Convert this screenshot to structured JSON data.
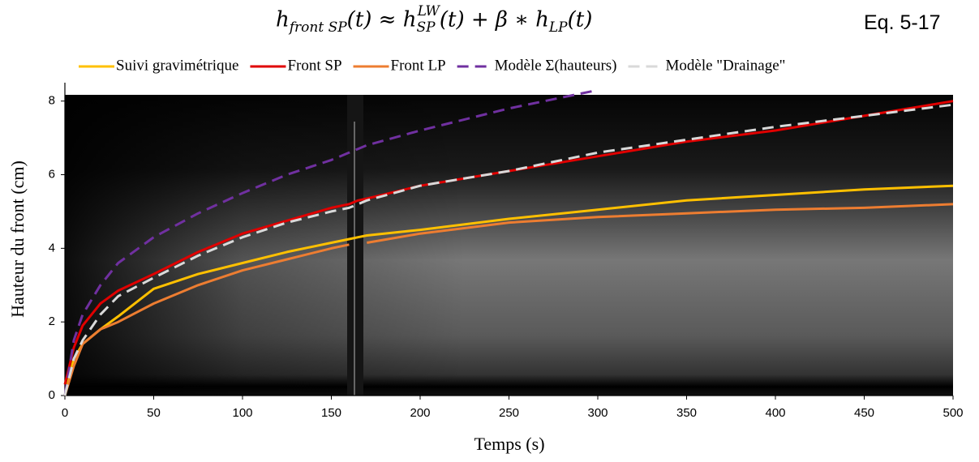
{
  "equation": {
    "base1": "h",
    "sub1": "front SP",
    "mid1": "(t) ≈ h",
    "sub2": "SP",
    "sup2": "LW",
    "mid2": "(t) + β ∗ h",
    "sub3": "LP",
    "end": "(t)"
  },
  "equation_label": "Eq. 5-17",
  "chart_data": {
    "type": "line",
    "x_label": "Temps (s)",
    "y_label": "Hauteur du front (cm)",
    "x": [
      0,
      5,
      10,
      20,
      30,
      50,
      75,
      100,
      125,
      150,
      160,
      165,
      170,
      200,
      250,
      300,
      350,
      400,
      450,
      500
    ],
    "xlim": [
      0,
      500
    ],
    "xticks": [
      0,
      50,
      100,
      150,
      200,
      250,
      300,
      350,
      400,
      450,
      500
    ],
    "ylim": [
      0,
      8.5
    ],
    "yticks": [
      0,
      2,
      4,
      6,
      8
    ],
    "legend": "top",
    "series": [
      {
        "name": "Suivi gravimétrique",
        "color": "#ffc000",
        "dash": false,
        "values": [
          0,
          1.0,
          1.4,
          1.8,
          2.15,
          2.9,
          3.3,
          3.6,
          3.9,
          4.15,
          4.25,
          4.3,
          4.35,
          4.5,
          4.8,
          5.05,
          5.3,
          5.45,
          5.6,
          5.7
        ]
      },
      {
        "name": "Front SP",
        "color": "#e00000",
        "dash": false,
        "values": [
          0.3,
          1.3,
          1.9,
          2.5,
          2.85,
          3.3,
          3.9,
          4.4,
          4.75,
          5.1,
          5.2,
          5.3,
          5.35,
          5.7,
          6.1,
          6.5,
          6.9,
          7.2,
          7.6,
          8.0
        ]
      },
      {
        "name": "Front LP",
        "color": "#ed7d31",
        "dash": false,
        "values": [
          0,
          0.8,
          1.4,
          1.8,
          2.0,
          2.5,
          3.0,
          3.4,
          3.7,
          4.0,
          4.1,
          null,
          4.15,
          4.4,
          4.7,
          4.85,
          4.95,
          5.05,
          5.1,
          5.2
        ]
      },
      {
        "name": "Modèle Σ(hauteurs)",
        "color": "#7030a0",
        "dash": true,
        "values": [
          0,
          1.5,
          2.2,
          3.0,
          3.6,
          4.3,
          4.95,
          5.5,
          6.0,
          6.4,
          6.6,
          6.7,
          6.8,
          7.2,
          7.8,
          8.3,
          null,
          null,
          null,
          null
        ]
      },
      {
        "name": "Modèle \"Drainage\"",
        "color": "#d9d9d9",
        "dash": true,
        "values": [
          0,
          1.0,
          1.5,
          2.2,
          2.7,
          3.2,
          3.8,
          4.3,
          4.7,
          5.0,
          5.1,
          5.2,
          5.3,
          5.7,
          6.1,
          6.6,
          6.95,
          7.3,
          7.6,
          7.9
        ]
      }
    ]
  }
}
